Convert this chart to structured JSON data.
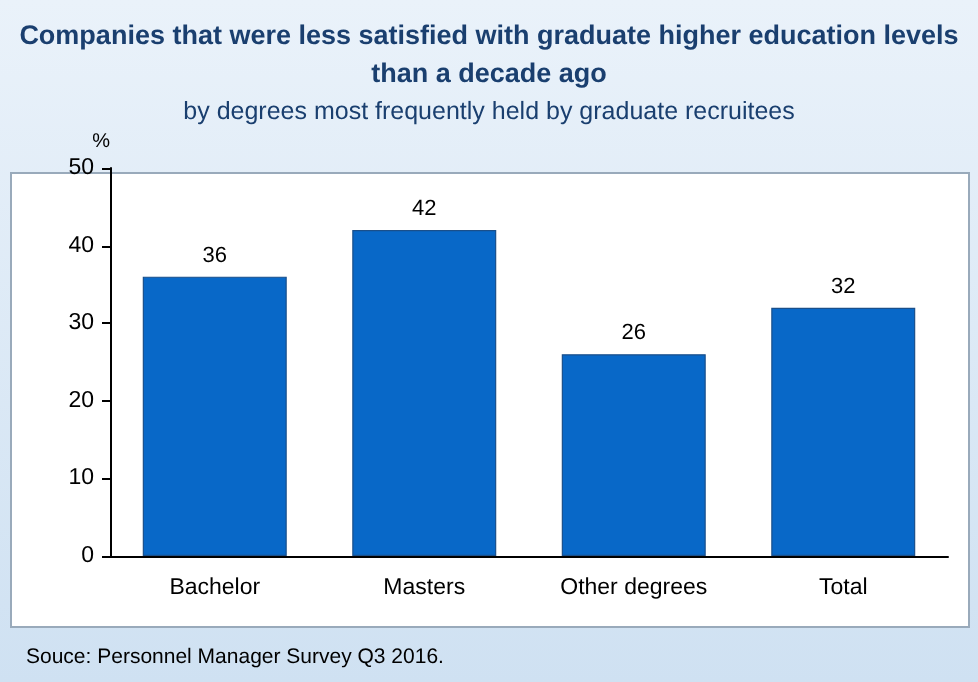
{
  "chart_data": {
    "type": "bar",
    "title": "Companies that were less satisfied with graduate higher education levels\nthan a decade ago",
    "subtitle": "by degrees most frequently held by graduate recruitees",
    "ylabel": "%",
    "categories": [
      "Bachelor",
      "Masters",
      "Other degrees",
      "Total"
    ],
    "values": [
      36,
      42,
      26,
      32
    ],
    "color": "#0868c8",
    "ylim": [
      0,
      50
    ],
    "yticks": [
      0,
      10,
      20,
      30,
      40,
      50
    ],
    "grid": false,
    "data_labels": true,
    "annotations": [
      "Souce: Personnel Manager Survey Q3 2016."
    ]
  }
}
